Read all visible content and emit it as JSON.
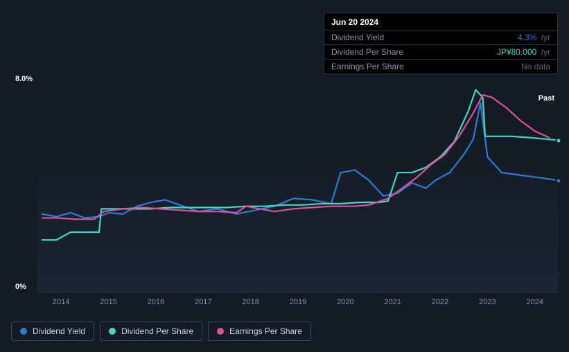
{
  "tooltip": {
    "date": "Jun 20 2024",
    "rows": [
      {
        "label": "Dividend Yield",
        "value": "4.3%",
        "unit": "/yr",
        "color": "blue"
      },
      {
        "label": "Dividend Per Share",
        "value": "JP¥80.000",
        "unit": "/yr",
        "color": "teal"
      },
      {
        "label": "Earnings Per Share",
        "value": "No data",
        "unit": "",
        "color": "muted"
      }
    ]
  },
  "chart": {
    "type": "line",
    "background_color": "#151b24",
    "plot_gradient_from": "rgba(30,45,65,0.55)",
    "plot_gradient_to": "rgba(21,27,36,0)",
    "ylim": [
      0,
      8
    ],
    "y_top_label": "8.0%",
    "y_bot_label": "0%",
    "past_label": "Past",
    "x_ticks": [
      "2014",
      "2015",
      "2016",
      "2017",
      "2018",
      "2019",
      "2020",
      "2021",
      "2022",
      "2023",
      "2024"
    ],
    "x_range": [
      2013.6,
      2024.6
    ],
    "line_width": 2.2,
    "series": [
      {
        "name": "Dividend Yield",
        "color": "#2e7bd6",
        "points": [
          [
            2013.7,
            3.0
          ],
          [
            2014.0,
            2.9
          ],
          [
            2014.3,
            3.05
          ],
          [
            2014.6,
            2.85
          ],
          [
            2014.9,
            2.9
          ],
          [
            2015.1,
            3.05
          ],
          [
            2015.4,
            3.0
          ],
          [
            2015.7,
            3.3
          ],
          [
            2016.0,
            3.45
          ],
          [
            2016.3,
            3.55
          ],
          [
            2016.6,
            3.35
          ],
          [
            2017.0,
            3.1
          ],
          [
            2017.4,
            3.2
          ],
          [
            2017.8,
            3.0
          ],
          [
            2018.2,
            3.15
          ],
          [
            2018.6,
            3.3
          ],
          [
            2019.0,
            3.6
          ],
          [
            2019.4,
            3.55
          ],
          [
            2019.8,
            3.4
          ],
          [
            2020.0,
            4.6
          ],
          [
            2020.3,
            4.7
          ],
          [
            2020.6,
            4.3
          ],
          [
            2020.9,
            3.7
          ],
          [
            2021.2,
            3.8
          ],
          [
            2021.5,
            4.2
          ],
          [
            2021.8,
            4.0
          ],
          [
            2022.0,
            4.3
          ],
          [
            2022.3,
            4.6
          ],
          [
            2022.6,
            5.3
          ],
          [
            2022.8,
            5.9
          ],
          [
            2022.95,
            7.3
          ],
          [
            2023.1,
            5.2
          ],
          [
            2023.4,
            4.6
          ],
          [
            2023.8,
            4.5
          ],
          [
            2024.2,
            4.4
          ],
          [
            2024.6,
            4.3
          ]
        ],
        "end_marker": true
      },
      {
        "name": "Dividend Per Share",
        "color": "#3fd9c4",
        "points": [
          [
            2013.7,
            2.0
          ],
          [
            2014.0,
            2.0
          ],
          [
            2014.3,
            2.3
          ],
          [
            2014.6,
            2.3
          ],
          [
            2014.9,
            2.3
          ],
          [
            2014.95,
            3.2
          ],
          [
            2015.2,
            3.2
          ],
          [
            2015.6,
            3.2
          ],
          [
            2016.0,
            3.2
          ],
          [
            2016.4,
            3.25
          ],
          [
            2016.8,
            3.25
          ],
          [
            2017.2,
            3.25
          ],
          [
            2017.6,
            3.25
          ],
          [
            2018.0,
            3.3
          ],
          [
            2018.4,
            3.3
          ],
          [
            2018.8,
            3.35
          ],
          [
            2019.2,
            3.35
          ],
          [
            2019.6,
            3.4
          ],
          [
            2020.0,
            3.4
          ],
          [
            2020.4,
            3.45
          ],
          [
            2020.8,
            3.45
          ],
          [
            2021.0,
            3.5
          ],
          [
            2021.2,
            4.6
          ],
          [
            2021.5,
            4.6
          ],
          [
            2021.8,
            4.8
          ],
          [
            2022.1,
            5.2
          ],
          [
            2022.4,
            5.8
          ],
          [
            2022.7,
            7.0
          ],
          [
            2022.85,
            7.8
          ],
          [
            2023.0,
            7.5
          ],
          [
            2023.05,
            6.0
          ],
          [
            2023.3,
            6.0
          ],
          [
            2023.6,
            6.0
          ],
          [
            2024.0,
            5.95
          ],
          [
            2024.3,
            5.9
          ],
          [
            2024.6,
            5.85
          ]
        ],
        "end_marker": true
      },
      {
        "name": "Earnings Per Share",
        "color": "#e14fa0",
        "points": [
          [
            2013.7,
            2.85
          ],
          [
            2014.0,
            2.85
          ],
          [
            2014.4,
            2.8
          ],
          [
            2014.8,
            2.8
          ],
          [
            2015.0,
            3.1
          ],
          [
            2015.4,
            3.2
          ],
          [
            2015.8,
            3.25
          ],
          [
            2016.2,
            3.2
          ],
          [
            2016.6,
            3.15
          ],
          [
            2017.0,
            3.1
          ],
          [
            2017.4,
            3.1
          ],
          [
            2017.8,
            3.05
          ],
          [
            2018.0,
            3.3
          ],
          [
            2018.3,
            3.2
          ],
          [
            2018.6,
            3.1
          ],
          [
            2019.0,
            3.2
          ],
          [
            2019.4,
            3.25
          ],
          [
            2019.8,
            3.3
          ],
          [
            2020.0,
            3.3
          ],
          [
            2020.3,
            3.3
          ],
          [
            2020.6,
            3.35
          ],
          [
            2021.0,
            3.6
          ],
          [
            2021.3,
            4.0
          ],
          [
            2021.6,
            4.4
          ],
          [
            2021.9,
            4.9
          ],
          [
            2022.2,
            5.3
          ],
          [
            2022.5,
            6.0
          ],
          [
            2022.8,
            6.9
          ],
          [
            2023.0,
            7.6
          ],
          [
            2023.2,
            7.5
          ],
          [
            2023.5,
            7.1
          ],
          [
            2023.8,
            6.6
          ],
          [
            2024.1,
            6.2
          ],
          [
            2024.4,
            5.95
          ]
        ],
        "end_marker": false
      }
    ]
  },
  "legend": [
    {
      "label": "Dividend Yield",
      "color": "#2e7bd6"
    },
    {
      "label": "Dividend Per Share",
      "color": "#3fd9c4"
    },
    {
      "label": "Earnings Per Share",
      "color": "#e14fa0"
    }
  ]
}
